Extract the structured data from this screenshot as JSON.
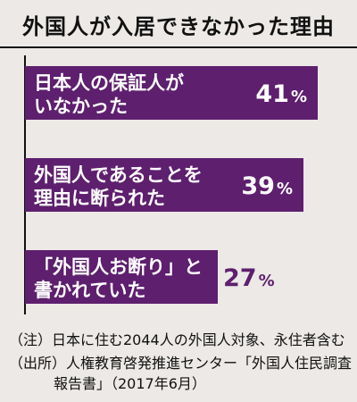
{
  "title": "外国人が入居できなかった理由",
  "accent_color": "#5e1f6e",
  "footnotes": {
    "note": "（注）日本に住む2044人の外国人対象、永住者含む",
    "source_line1": "（出所）人権教育啓発推進センター「外国人住民調査",
    "source_line2": "報告書」（2017年6月）"
  },
  "chart_data": {
    "type": "bar",
    "orientation": "horizontal",
    "title": "外国人が入居できなかった理由",
    "unit": "%",
    "categories": [
      [
        "日本人の保証人が",
        "いなかった"
      ],
      [
        "外国人であることを",
        "理由に断られた"
      ],
      [
        "「外国人お断り」と",
        "書かれていた"
      ]
    ],
    "values": [
      41,
      39,
      27
    ],
    "xlim": [
      0,
      45
    ],
    "grid": false,
    "legend": "none"
  }
}
